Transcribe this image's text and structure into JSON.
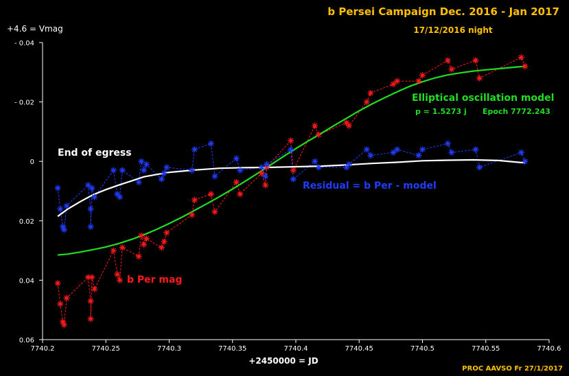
{
  "chart_data": {
    "type": "line",
    "title": "b Persei Campaign Dec. 2016 - Jan 2017",
    "subtitle": "17/12/2016 night",
    "ylabel": "+4.6 = Vmag",
    "xlabel": "+2450000 = JD",
    "footer": "PROC AAVSO Fr  27/1/2017",
    "xlim": [
      7740.2,
      7740.6
    ],
    "ylim": [
      -0.04,
      0.06
    ],
    "y_inverted": true,
    "grid": false,
    "x_ticks": [
      "7740.2",
      "7740.25",
      "7740.3",
      "7740.35",
      "7740.4",
      "7740.45",
      "7740.5",
      "7740.55",
      "7740.6"
    ],
    "y_ticks": [
      {
        "value": -0.04,
        "label": "- 0.04"
      },
      {
        "value": -0.02,
        "label": "- 0.02"
      },
      {
        "value": 0,
        "label": "0"
      },
      {
        "value": 0.02,
        "label": "0.02"
      },
      {
        "value": 0.04,
        "label": "0.04"
      },
      {
        "value": 0.06,
        "label": "0.06"
      }
    ],
    "annotations": {
      "model_title": "Elliptical oscillation model",
      "model_period": "p = 1.5273 j",
      "model_epoch": "Epoch 7772.243",
      "egress": "End of egress",
      "residual": "Residual = b Per - model",
      "bper": "b Per mag"
    },
    "colors": {
      "observed": "#ff1a1a",
      "residual": "#1f3cff",
      "model": "#22dd22",
      "trend": "#ffffff",
      "title": "#ffc000",
      "axis_text": "#ffffff"
    },
    "series": [
      {
        "key": "observed",
        "x": [
          7740.212,
          7740.214,
          7740.216,
          7740.217,
          7740.219,
          7740.236,
          7740.238,
          7740.238,
          7740.239,
          7740.241,
          7740.256,
          7740.259,
          7740.261,
          7740.263,
          7740.276,
          7740.278,
          7740.28,
          7740.282,
          7740.294,
          7740.296,
          7740.298,
          7740.318,
          7740.32,
          7740.333,
          7740.336,
          7740.353,
          7740.356,
          7740.373,
          7740.376,
          7740.377,
          7740.396,
          7740.398,
          7740.415,
          7740.418,
          7740.44,
          7740.442,
          7740.456,
          7740.459,
          7740.477,
          7740.48,
          7740.497,
          7740.5,
          7740.52,
          7740.523,
          7740.542,
          7740.545,
          7740.578,
          7740.581
        ],
        "y": [
          0.041,
          0.048,
          0.054,
          0.055,
          0.046,
          0.039,
          0.047,
          0.053,
          0.039,
          0.043,
          0.03,
          0.038,
          0.04,
          0.029,
          0.032,
          0.025,
          0.028,
          0.026,
          0.029,
          0.027,
          0.024,
          0.018,
          0.013,
          0.011,
          0.017,
          0.007,
          0.011,
          0.004,
          0.008,
          0.002,
          -0.007,
          0.003,
          -0.012,
          -0.009,
          -0.013,
          -0.012,
          -0.02,
          -0.023,
          -0.026,
          -0.027,
          -0.027,
          -0.029,
          -0.034,
          -0.031,
          -0.034,
          -0.028,
          -0.035,
          -0.032
        ]
      },
      {
        "key": "residual",
        "x": [
          7740.212,
          7740.214,
          7740.216,
          7740.217,
          7740.219,
          7740.236,
          7740.238,
          7740.238,
          7740.239,
          7740.241,
          7740.256,
          7740.259,
          7740.261,
          7740.263,
          7740.276,
          7740.278,
          7740.28,
          7740.282,
          7740.294,
          7740.296,
          7740.298,
          7740.318,
          7740.32,
          7740.333,
          7740.336,
          7740.353,
          7740.356,
          7740.373,
          7740.376,
          7740.377,
          7740.396,
          7740.398,
          7740.415,
          7740.418,
          7740.44,
          7740.442,
          7740.456,
          7740.459,
          7740.477,
          7740.48,
          7740.497,
          7740.5,
          7740.52,
          7740.523,
          7740.542,
          7740.545,
          7740.578,
          7740.581
        ],
        "y": [
          0.009,
          0.016,
          0.022,
          0.023,
          0.015,
          0.008,
          0.016,
          0.022,
          0.009,
          0.012,
          0.003,
          0.011,
          0.012,
          0.003,
          0.007,
          0.0,
          0.003,
          0.001,
          0.006,
          0.004,
          0.002,
          0.003,
          -0.004,
          -0.006,
          0.005,
          -0.001,
          0.003,
          0.002,
          0.005,
          0.001,
          -0.004,
          0.006,
          0.0,
          0.002,
          0.002,
          0.001,
          -0.004,
          -0.002,
          -0.003,
          -0.004,
          -0.002,
          -0.004,
          -0.006,
          -0.003,
          -0.004,
          0.002,
          -0.003,
          0.0
        ]
      },
      {
        "key": "model",
        "x": [
          7740.212,
          7740.22,
          7740.23,
          7740.24,
          7740.25,
          7740.26,
          7740.27,
          7740.28,
          7740.29,
          7740.3,
          7740.31,
          7740.32,
          7740.33,
          7740.34,
          7740.35,
          7740.36,
          7740.37,
          7740.38,
          7740.39,
          7740.4,
          7740.41,
          7740.42,
          7740.43,
          7740.44,
          7740.45,
          7740.46,
          7740.47,
          7740.48,
          7740.49,
          7740.5,
          7740.51,
          7740.52,
          7740.53,
          7740.54,
          7740.55,
          7740.56,
          7740.57,
          7740.581
        ],
        "y": [
          0.0315,
          0.0312,
          0.0305,
          0.0297,
          0.0288,
          0.0277,
          0.0263,
          0.0247,
          0.0229,
          0.0209,
          0.0188,
          0.0165,
          0.0142,
          0.0118,
          0.0093,
          0.0067,
          0.004,
          0.0012,
          -0.0016,
          -0.0043,
          -0.0069,
          -0.0094,
          -0.012,
          -0.0145,
          -0.017,
          -0.0193,
          -0.0214,
          -0.0234,
          -0.0253,
          -0.0268,
          -0.0281,
          -0.0291,
          -0.0298,
          -0.0304,
          -0.0308,
          -0.0312,
          -0.0316,
          -0.032
        ]
      },
      {
        "key": "trend",
        "x": [
          7740.212,
          7740.22,
          7740.23,
          7740.24,
          7740.25,
          7740.26,
          7740.27,
          7740.28,
          7740.29,
          7740.3,
          7740.32,
          7740.34,
          7740.36,
          7740.38,
          7740.4,
          7740.42,
          7740.44,
          7740.46,
          7740.48,
          7740.5,
          7740.52,
          7740.54,
          7740.56,
          7740.581
        ],
        "y": [
          0.0185,
          0.016,
          0.0135,
          0.0112,
          0.0095,
          0.008,
          0.0066,
          0.0052,
          0.0044,
          0.0037,
          0.0029,
          0.0023,
          0.0021,
          0.002,
          0.0018,
          0.0016,
          0.0012,
          0.0007,
          0.0003,
          -0.0002,
          -0.0004,
          -0.0005,
          -0.0003,
          0.0005
        ]
      }
    ]
  }
}
